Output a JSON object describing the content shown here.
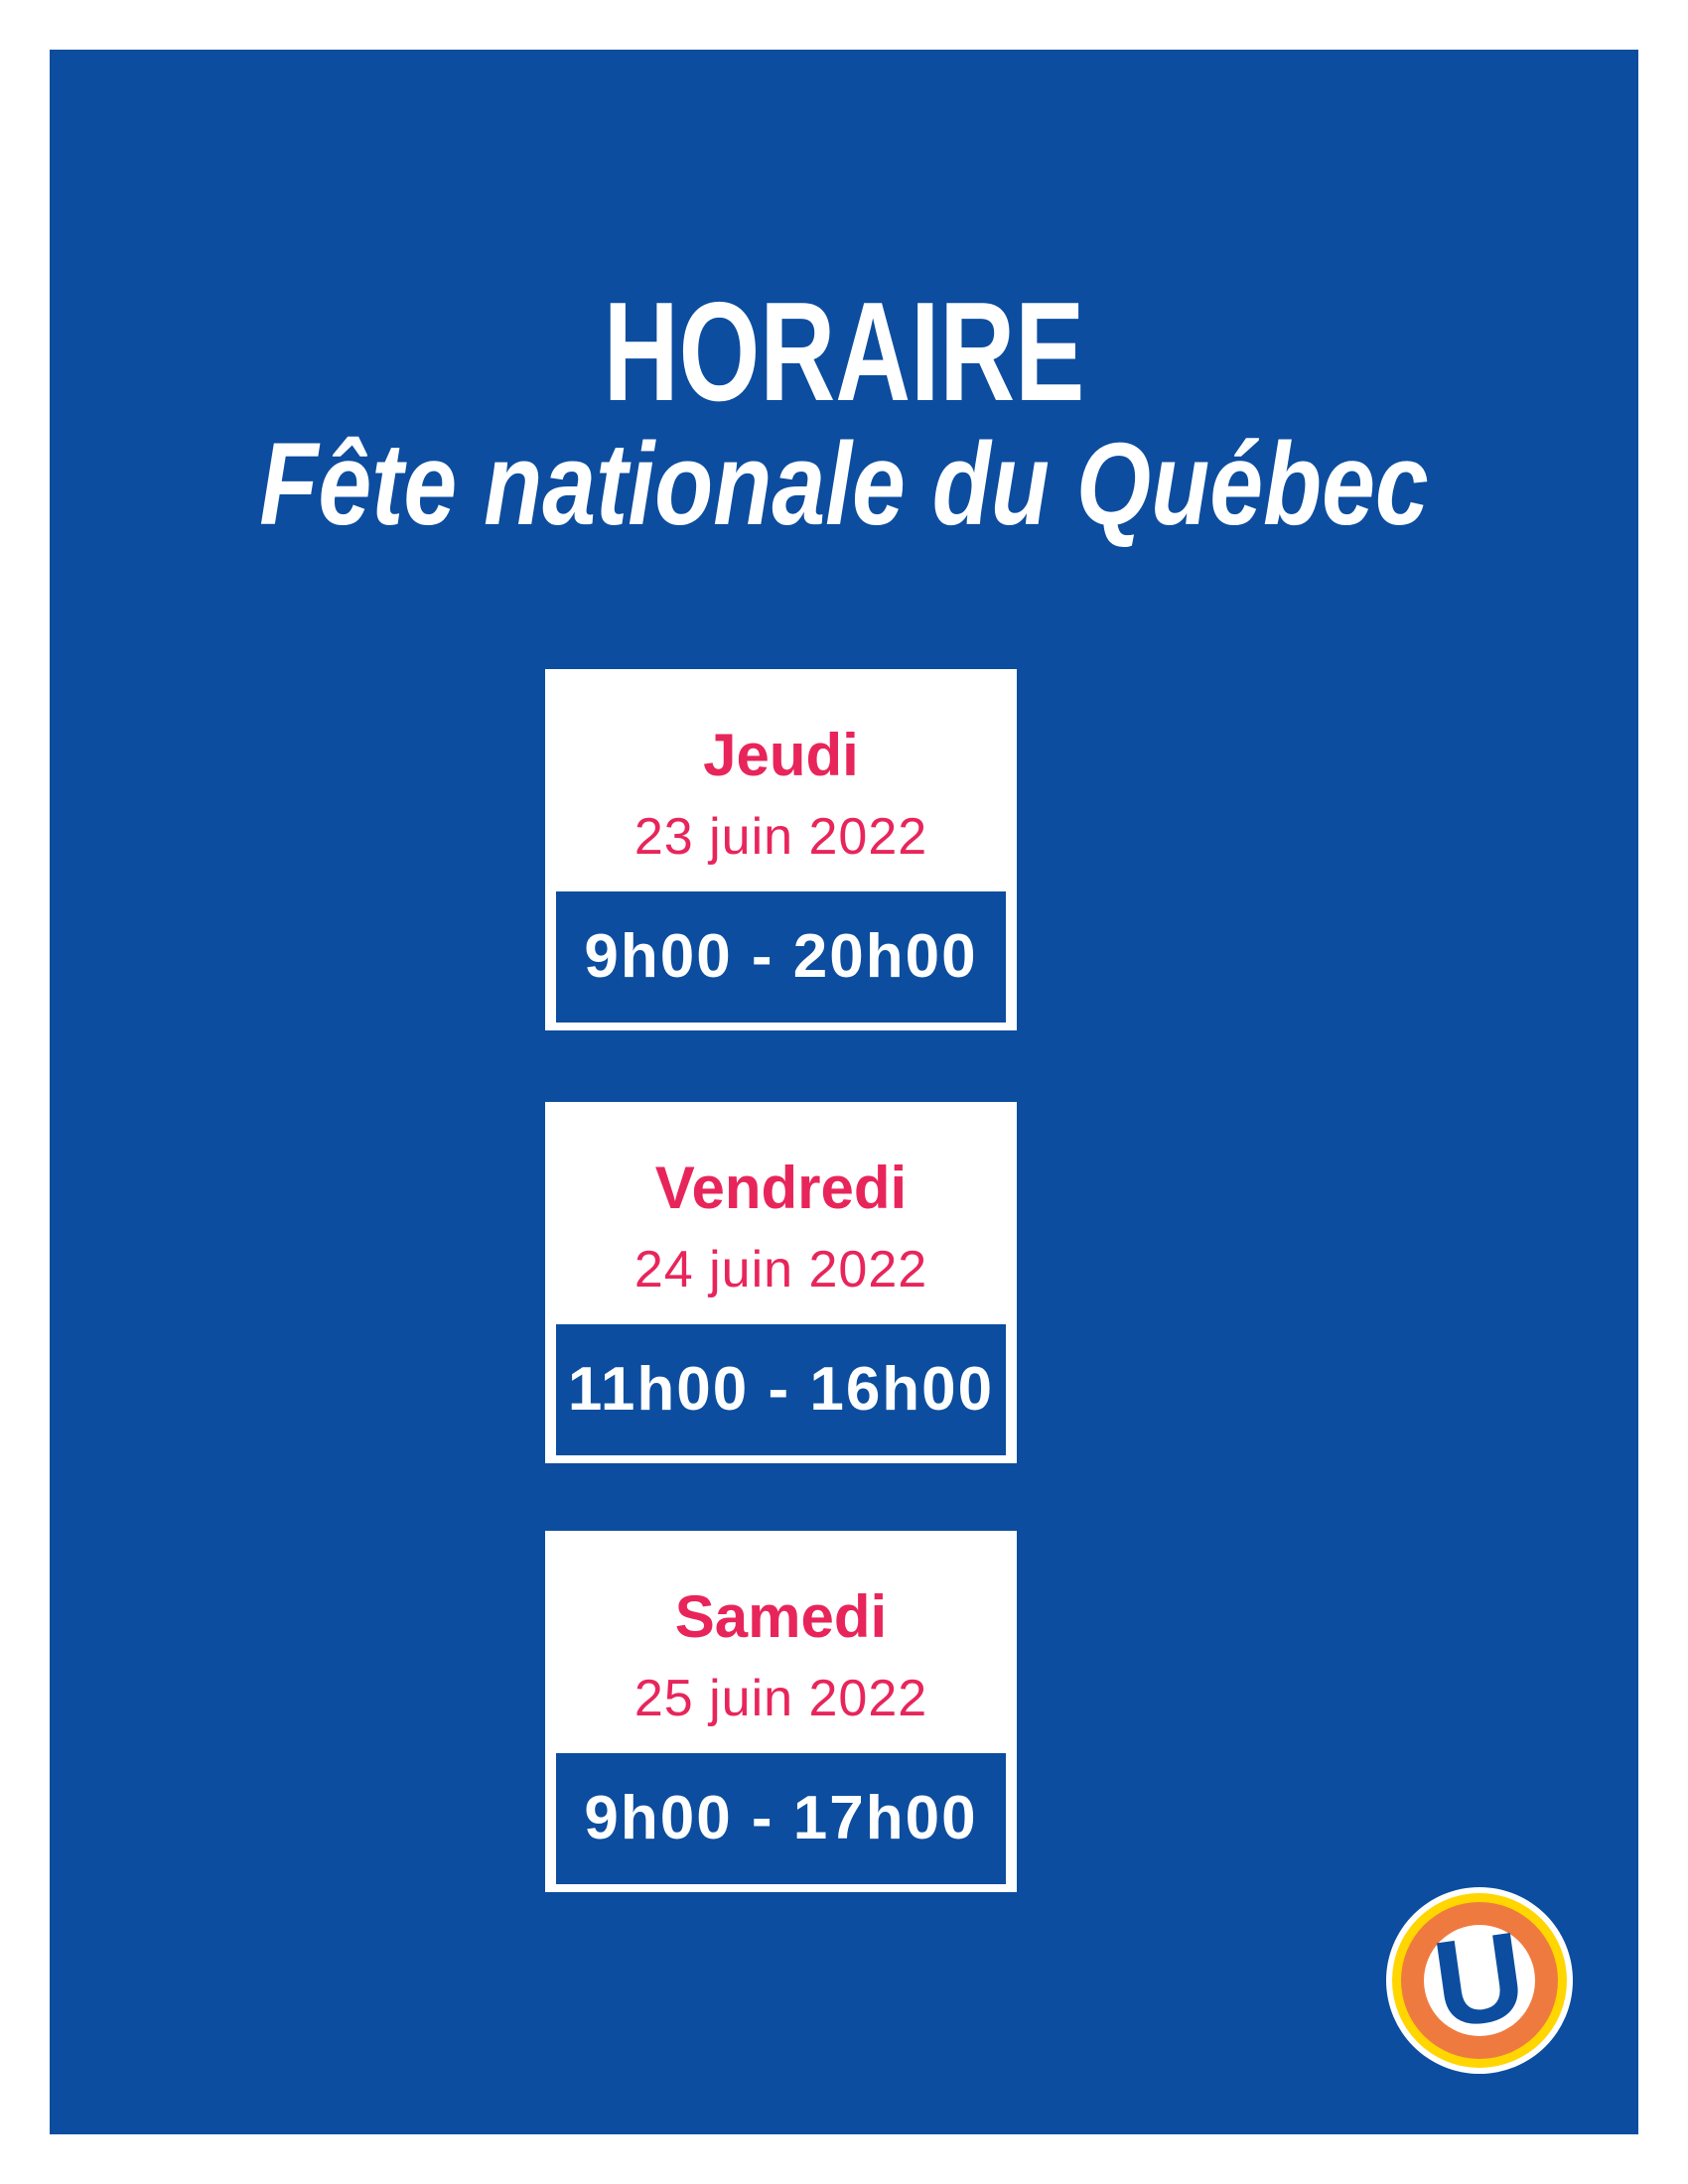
{
  "poster": {
    "title": "HORAIRE",
    "subtitle": "Fête nationale du Québec",
    "schedule": [
      {
        "day": "Jeudi",
        "date": "23 juin 2022",
        "hours": "9h00 - 20h00"
      },
      {
        "day": "Vendredi",
        "date": "24 juin 2022",
        "hours": "11h00 - 16h00"
      },
      {
        "day": "Samedi",
        "date": "25 juin 2022",
        "hours": "9h00 - 17h00"
      }
    ],
    "logo_letter": "U",
    "colors": {
      "background": "#0C4D9F",
      "card_white": "#FFFFFF",
      "accent_pink": "#E8255B",
      "text_white": "#FFFFFF",
      "logo_yellow": "#FFD600",
      "logo_orange": "#EF7A3F"
    }
  }
}
